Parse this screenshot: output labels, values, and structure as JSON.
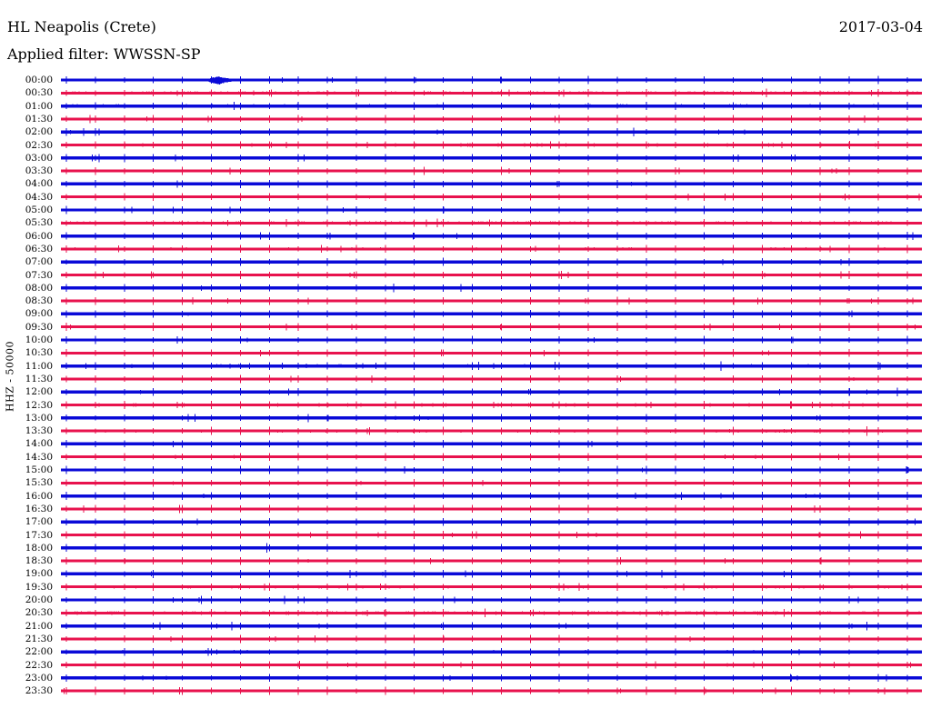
{
  "header": {
    "station": "HL Neapolis (Crete)",
    "date": "2017-03-04",
    "filter": "Applied filter: WWSSN-SP"
  },
  "axis": {
    "scale_label": "HHZ - 50000"
  },
  "chart_data": {
    "type": "line",
    "subtype": "helicorder-seismogram",
    "title": "HL Neapolis (Crete)",
    "date": "2017-03-04",
    "filter": "WWSSN-SP",
    "channel_scale_label": "HHZ - 50000",
    "minutes_per_row": 30,
    "minute_tick_marks": true,
    "legend_position": "none",
    "grid": false,
    "rows": [
      "00:00",
      "00:30",
      "01:00",
      "01:30",
      "02:00",
      "02:30",
      "03:00",
      "03:30",
      "04:00",
      "04:30",
      "05:00",
      "05:30",
      "06:00",
      "06:30",
      "07:00",
      "07:30",
      "08:00",
      "08:30",
      "09:00",
      "09:30",
      "10:00",
      "10:30",
      "11:00",
      "11:30",
      "12:00",
      "12:30",
      "13:00",
      "13:30",
      "14:00",
      "14:30",
      "15:00",
      "15:30",
      "16:00",
      "16:30",
      "17:00",
      "17:30",
      "18:00",
      "18:30",
      "19:00",
      "19:30",
      "20:00",
      "20:30",
      "21:00",
      "21:30",
      "22:00",
      "22:30",
      "23:00",
      "23:30"
    ],
    "trace_colors": {
      "hour_rows": "#0a0ad8",
      "half_hour_rows": "#e8124d"
    },
    "background_signal": "low-amplitude ambient noise on all traces with one tick mark per minute",
    "events": [
      {
        "row": "00:00",
        "start_minute": 5.1,
        "peak_minute": 5.5,
        "end_minute": 6.1,
        "description": "small high-amplitude burst (minor seismic event)"
      }
    ]
  }
}
